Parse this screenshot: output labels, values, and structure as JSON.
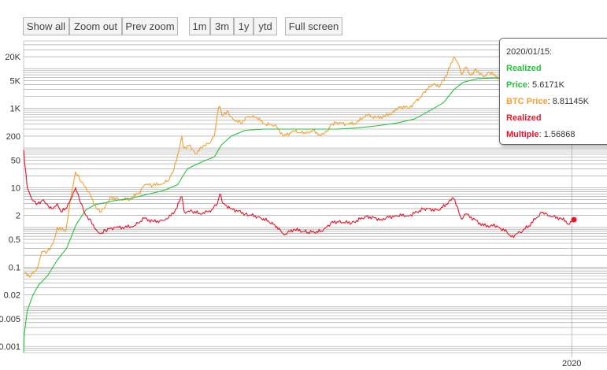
{
  "toolbar": {
    "buttons": [
      "Show all",
      "Zoom out",
      "Prev zoom",
      "1m",
      "3m",
      "1y",
      "ytd",
      "Full screen"
    ]
  },
  "tooltip": {
    "date": "2020/01/15:",
    "realized_title": "Realized",
    "realized_price_label": "Price",
    "realized_price_value": ": 5.6171K",
    "btc_label": "BTC Price",
    "btc_value": ": 8.81145K",
    "multiple_title": "Realized",
    "multiple_label": "Multiple",
    "multiple_value": ": 1.56868"
  },
  "colors": {
    "realized_price": "#22c43a",
    "btc_price": "#f5a030",
    "realized_multiple": "#e8142c",
    "grid": "#999999"
  },
  "chart_data": {
    "type": "line",
    "y_scale": "log",
    "ylim": [
      0.0007,
      50000
    ],
    "xlim": [
      "2010-07-18",
      "2020-08-10"
    ],
    "y_ticks": [
      {
        "v": 0.001,
        "label": "0.001"
      },
      {
        "v": 0.005,
        "label": "0.005"
      },
      {
        "v": 0.02,
        "label": "0.02"
      },
      {
        "v": 0.1,
        "label": "0.1"
      },
      {
        "v": 0.5,
        "label": "0.5"
      },
      {
        "v": 2,
        "label": "2"
      },
      {
        "v": 10,
        "label": "10"
      },
      {
        "v": 50,
        "label": "50"
      },
      {
        "v": 200,
        "label": "200"
      },
      {
        "v": 1000,
        "label": "1K"
      },
      {
        "v": 5000,
        "label": "5K"
      },
      {
        "v": 20000,
        "label": "20K"
      }
    ],
    "x_ticks": [
      {
        "date": "2020-01-01",
        "label": "2020"
      }
    ],
    "grid": true,
    "series": [
      {
        "name": "BTC Price",
        "points": [
          [
            "2010-07-18",
            0.07
          ],
          [
            "2010-09-01",
            0.06
          ],
          [
            "2010-10-15",
            0.1
          ],
          [
            "2010-11-10",
            0.25
          ],
          [
            "2010-12-15",
            0.25
          ],
          [
            "2011-01-20",
            0.4
          ],
          [
            "2011-02-15",
            1.0
          ],
          [
            "2011-04-10",
            0.8
          ],
          [
            "2011-05-15",
            7
          ],
          [
            "2011-06-10",
            25
          ],
          [
            "2011-07-15",
            14
          ],
          [
            "2011-09-01",
            8
          ],
          [
            "2011-10-20",
            3
          ],
          [
            "2011-11-20",
            2.5
          ],
          [
            "2011-12-20",
            3.8
          ],
          [
            "2012-01-20",
            6
          ],
          [
            "2012-03-15",
            5
          ],
          [
            "2012-05-20",
            5.2
          ],
          [
            "2012-07-15",
            7.5
          ],
          [
            "2012-08-20",
            12
          ],
          [
            "2012-10-10",
            11.5
          ],
          [
            "2012-12-15",
            13
          ],
          [
            "2013-01-20",
            16
          ],
          [
            "2013-02-20",
            30
          ],
          [
            "2013-03-20",
            80
          ],
          [
            "2013-04-10",
            200
          ],
          [
            "2013-04-20",
            100
          ],
          [
            "2013-06-01",
            120
          ],
          [
            "2013-07-05",
            70
          ],
          [
            "2013-08-20",
            110
          ],
          [
            "2013-10-01",
            130
          ],
          [
            "2013-11-01",
            200
          ],
          [
            "2013-11-20",
            700
          ],
          [
            "2013-12-04",
            1150
          ],
          [
            "2013-12-20",
            650
          ],
          [
            "2014-01-20",
            850
          ],
          [
            "2014-02-25",
            550
          ],
          [
            "2014-04-15",
            430
          ],
          [
            "2014-06-01",
            620
          ],
          [
            "2014-07-20",
            600
          ],
          [
            "2014-09-20",
            400
          ],
          [
            "2014-11-15",
            380
          ],
          [
            "2015-01-14",
            200
          ],
          [
            "2015-03-15",
            270
          ],
          [
            "2015-06-01",
            230
          ],
          [
            "2015-07-15",
            290
          ],
          [
            "2015-08-25",
            220
          ],
          [
            "2015-10-15",
            260
          ],
          [
            "2015-11-04",
            400
          ],
          [
            "2015-12-15",
            440
          ],
          [
            "2016-02-15",
            400
          ],
          [
            "2016-04-15",
            430
          ],
          [
            "2016-06-15",
            700
          ],
          [
            "2016-08-15",
            580
          ],
          [
            "2016-10-15",
            640
          ],
          [
            "2016-12-25",
            900
          ],
          [
            "2017-01-05",
            1100
          ],
          [
            "2017-03-15",
            1050
          ],
          [
            "2017-05-15",
            1800
          ],
          [
            "2017-06-15",
            2600
          ],
          [
            "2017-08-15",
            4200
          ],
          [
            "2017-09-15",
            3400
          ],
          [
            "2017-11-01",
            6500
          ],
          [
            "2017-12-17",
            19000
          ],
          [
            "2018-01-15",
            13500
          ],
          [
            "2018-02-06",
            7000
          ],
          [
            "2018-03-05",
            11000
          ],
          [
            "2018-04-05",
            6800
          ],
          [
            "2018-05-05",
            9800
          ],
          [
            "2018-06-25",
            6100
          ],
          [
            "2018-07-25",
            8200
          ],
          [
            "2018-09-15",
            6400
          ],
          [
            "2018-11-20",
            4400
          ],
          [
            "2018-12-15",
            3300
          ],
          [
            "2019-02-10",
            3600
          ],
          [
            "2019-04-05",
            5000
          ],
          [
            "2019-05-15",
            7800
          ],
          [
            "2019-06-26",
            12500
          ],
          [
            "2019-07-20",
            10300
          ],
          [
            "2019-08-20",
            10200
          ],
          [
            "2019-09-25",
            8200
          ],
          [
            "2019-10-26",
            9300
          ],
          [
            "2019-12-18",
            6700
          ],
          [
            "2020-01-15",
            8811
          ]
        ]
      },
      {
        "name": "Realized Price",
        "points": [
          [
            "2010-07-18",
            0.0007
          ],
          [
            "2010-07-22",
            0.002
          ],
          [
            "2010-08-10",
            0.008
          ],
          [
            "2010-09-15",
            0.02
          ],
          [
            "2010-10-20",
            0.035
          ],
          [
            "2010-12-15",
            0.06
          ],
          [
            "2011-02-15",
            0.15
          ],
          [
            "2011-04-15",
            0.3
          ],
          [
            "2011-06-15",
            1.2
          ],
          [
            "2011-08-15",
            2.8
          ],
          [
            "2011-10-15",
            3.8
          ],
          [
            "2011-12-15",
            4.2
          ],
          [
            "2012-02-15",
            4.8
          ],
          [
            "2012-05-15",
            5.3
          ],
          [
            "2012-08-15",
            6.5
          ],
          [
            "2012-12-15",
            8.5
          ],
          [
            "2013-03-15",
            12
          ],
          [
            "2013-05-15",
            30
          ],
          [
            "2013-08-15",
            45
          ],
          [
            "2013-11-01",
            60
          ],
          [
            "2013-12-15",
            120
          ],
          [
            "2014-02-15",
            200
          ],
          [
            "2014-05-15",
            280
          ],
          [
            "2014-09-15",
            300
          ],
          [
            "2015-01-15",
            300
          ],
          [
            "2015-06-15",
            300
          ],
          [
            "2015-12-15",
            300
          ],
          [
            "2016-04-15",
            320
          ],
          [
            "2016-08-15",
            360
          ],
          [
            "2016-12-15",
            420
          ],
          [
            "2017-04-15",
            540
          ],
          [
            "2017-07-15",
            850
          ],
          [
            "2017-10-15",
            1400
          ],
          [
            "2017-12-20",
            3000
          ],
          [
            "2018-02-15",
            4500
          ],
          [
            "2018-05-15",
            5600
          ],
          [
            "2018-08-15",
            5800
          ],
          [
            "2018-11-15",
            5800
          ],
          [
            "2019-02-15",
            4400
          ],
          [
            "2019-05-15",
            4600
          ],
          [
            "2019-08-15",
            5300
          ],
          [
            "2019-11-15",
            5600
          ],
          [
            "2020-01-15",
            5617
          ]
        ]
      },
      {
        "name": "Realized Multiple",
        "points": [
          [
            "2010-07-18",
            90
          ],
          [
            "2010-07-25",
            40
          ],
          [
            "2010-08-10",
            10
          ],
          [
            "2010-09-10",
            5
          ],
          [
            "2010-10-15",
            4
          ],
          [
            "2010-11-20",
            5
          ],
          [
            "2010-12-20",
            3.5
          ],
          [
            "2011-01-20",
            3
          ],
          [
            "2011-02-15",
            4
          ],
          [
            "2011-03-10",
            2.5
          ],
          [
            "2011-04-15",
            3
          ],
          [
            "2011-05-20",
            6
          ],
          [
            "2011-06-10",
            10
          ],
          [
            "2011-07-15",
            4
          ],
          [
            "2011-08-15",
            2
          ],
          [
            "2011-09-15",
            1.5
          ],
          [
            "2011-10-15",
            0.9
          ],
          [
            "2011-11-15",
            0.7
          ],
          [
            "2011-12-15",
            0.85
          ],
          [
            "2012-02-15",
            1.0
          ],
          [
            "2012-04-15",
            1.0
          ],
          [
            "2012-06-15",
            1.1
          ],
          [
            "2012-08-15",
            1.7
          ],
          [
            "2012-10-15",
            1.4
          ],
          [
            "2012-12-15",
            1.5
          ],
          [
            "2013-02-15",
            2.2
          ],
          [
            "2013-04-10",
            6
          ],
          [
            "2013-04-25",
            2.5
          ],
          [
            "2013-06-15",
            2.5
          ],
          [
            "2013-08-15",
            2.2
          ],
          [
            "2013-10-15",
            2.8
          ],
          [
            "2013-11-20",
            4
          ],
          [
            "2013-12-05",
            7
          ],
          [
            "2013-12-25",
            4
          ],
          [
            "2014-02-15",
            3
          ],
          [
            "2014-05-15",
            2.2
          ],
          [
            "2014-08-15",
            1.8
          ],
          [
            "2014-11-15",
            1.2
          ],
          [
            "2015-01-14",
            0.65
          ],
          [
            "2015-03-15",
            0.9
          ],
          [
            "2015-06-15",
            0.75
          ],
          [
            "2015-09-15",
            0.8
          ],
          [
            "2015-11-05",
            1.3
          ],
          [
            "2015-12-15",
            1.4
          ],
          [
            "2016-03-15",
            1.3
          ],
          [
            "2016-06-15",
            1.9
          ],
          [
            "2016-09-15",
            1.6
          ],
          [
            "2016-12-15",
            2.0
          ],
          [
            "2017-03-15",
            2.0
          ],
          [
            "2017-06-15",
            3.0
          ],
          [
            "2017-09-15",
            2.7
          ],
          [
            "2017-12-17",
            5.5
          ],
          [
            "2018-02-06",
            1.6
          ],
          [
            "2018-03-05",
            2.2
          ],
          [
            "2018-06-25",
            1.1
          ],
          [
            "2018-09-15",
            1.1
          ],
          [
            "2018-11-20",
            0.75
          ],
          [
            "2018-12-15",
            0.58
          ],
          [
            "2019-02-10",
            0.75
          ],
          [
            "2019-04-05",
            1.1
          ],
          [
            "2019-06-26",
            2.4
          ],
          [
            "2019-08-20",
            1.9
          ],
          [
            "2019-10-26",
            1.7
          ],
          [
            "2019-12-18",
            1.2
          ],
          [
            "2020-01-15",
            1.569
          ]
        ]
      }
    ]
  }
}
